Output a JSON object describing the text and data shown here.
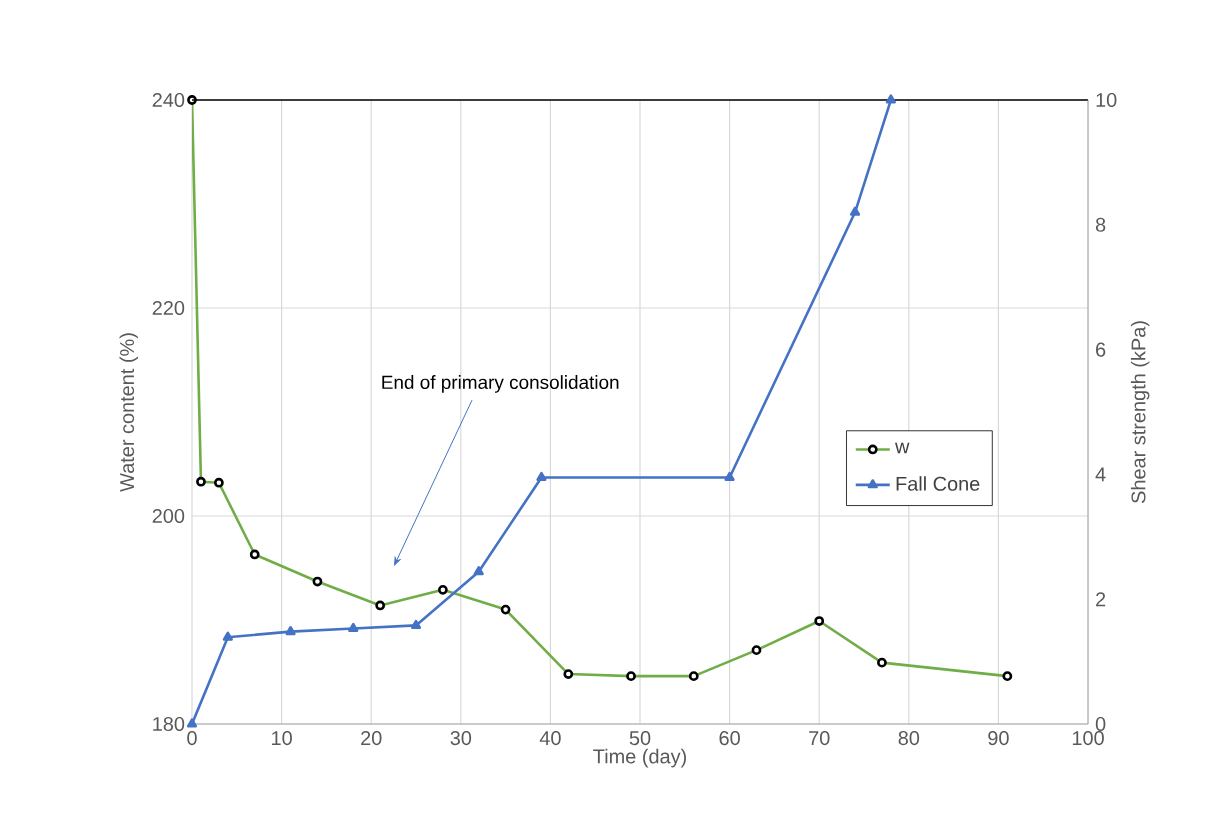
{
  "chart_data": {
    "type": "line",
    "xlabel": "Time (day)",
    "ylabel": "Water content (%)",
    "y2label": "Shear strength (kPa)",
    "xlim": [
      0,
      100
    ],
    "xticks": [
      0,
      10,
      20,
      30,
      40,
      50,
      60,
      70,
      80,
      90,
      100
    ],
    "ylim": [
      180,
      240
    ],
    "yticks": [
      180,
      200,
      220,
      240
    ],
    "y2lim": [
      0,
      10
    ],
    "y2ticks": [
      0,
      2,
      4,
      6,
      8,
      10
    ],
    "grid": true,
    "legend": "right",
    "line_style": "solid",
    "annotations": [
      "End of primary consolidation"
    ],
    "series": [
      {
        "name": "w",
        "color": "#70ad47",
        "marker": "circle",
        "x": [
          0,
          1,
          3,
          7,
          14,
          21,
          28,
          35,
          42,
          49,
          56,
          63,
          70,
          77,
          91
        ],
        "values": [
          240,
          203.3,
          203.2,
          196.3,
          193.7,
          191.4,
          192.9,
          191.0,
          184.8,
          184.6,
          184.6,
          187.1,
          189.9,
          185.9,
          184.6
        ]
      },
      {
        "name": "Fall Cone",
        "color": "#4472c4",
        "marker": "triangle",
        "axis": "y2",
        "x": [
          0,
          4,
          11,
          18,
          25,
          32,
          39,
          60,
          74,
          78
        ],
        "values": [
          0,
          1.39,
          1.48,
          1.53,
          1.58,
          2.44,
          3.95,
          3.95,
          8.2,
          10
        ]
      }
    ]
  }
}
